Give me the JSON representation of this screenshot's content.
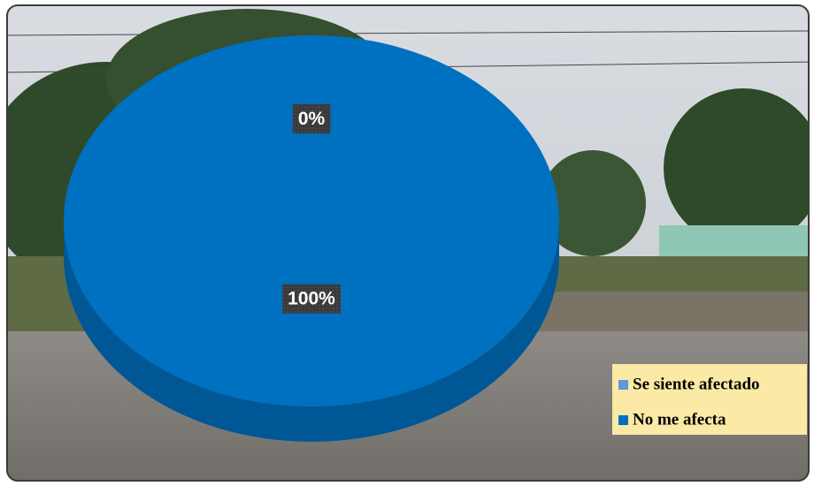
{
  "chart_data": {
    "type": "pie",
    "categories": [
      "Se siente afectado",
      "No me afecta"
    ],
    "values": [
      0,
      100
    ],
    "value_labels": [
      "0%",
      "100%"
    ],
    "colors": [
      "#5b9bd5",
      "#0070c0"
    ],
    "legend": "bottom-right"
  }
}
